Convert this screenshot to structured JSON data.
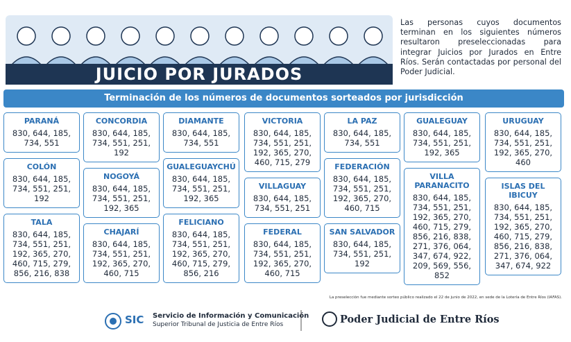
{
  "header": {
    "title": "JUICIO POR JURADOS",
    "intro": "Las personas cuyos documentos terminan en los siguientes números resultaron preseleccionadas para integrar Juicios por Jurados en Entre Ríos. Serán contactadas por personal del Poder Judicial."
  },
  "subtitle": "Terminación de los números de documentos sorteados por jurisdicción",
  "columns": [
    [
      {
        "name": "PARANÁ",
        "numbers": "830, 644, 185, 734, 551"
      },
      {
        "name": "COLÓN",
        "numbers": "830, 644, 185, 734, 551, 251, 192"
      },
      {
        "name": "TALA",
        "numbers": "830, 644, 185, 734, 551, 251, 192, 365, 270, 460, 715, 279, 856, 216, 838"
      }
    ],
    [
      {
        "name": "CONCORDIA",
        "numbers": "830, 644, 185, 734, 551, 251, 192"
      },
      {
        "name": "NOGOYÁ",
        "numbers": "830, 644, 185, 734, 551, 251, 192, 365"
      },
      {
        "name": "CHAJARÍ",
        "numbers": "830, 644, 185, 734, 551, 251, 192, 365, 270, 460, 715"
      }
    ],
    [
      {
        "name": "DIAMANTE",
        "numbers": "830, 644, 185, 734, 551"
      },
      {
        "name": "GUALEGUAYCHÚ",
        "numbers": "830, 644, 185, 734, 551, 251, 192, 365"
      },
      {
        "name": "FELICIANO",
        "numbers": "830, 644, 185, 734, 551, 251, 192, 365, 270, 460, 715, 279, 856, 216"
      }
    ],
    [
      {
        "name": "VICTORIA",
        "numbers": "830, 644, 185, 734, 551, 251, 192, 365, 270, 460, 715, 279"
      },
      {
        "name": "VILLAGUAY",
        "numbers": "830, 644, 185, 734, 551, 251"
      },
      {
        "name": "FEDERAL",
        "numbers": "830, 644, 185, 734, 551, 251, 192, 365, 270, 460, 715"
      }
    ],
    [
      {
        "name": "LA PAZ",
        "numbers": "830, 644, 185, 734, 551"
      },
      {
        "name": "FEDERACIÓN",
        "numbers": "830, 644, 185, 734, 551, 251, 192, 365, 270, 460, 715"
      },
      {
        "name": "SAN SALVADOR",
        "numbers": "830, 644, 185, 734, 551, 251, 192"
      }
    ],
    [
      {
        "name": "GUALEGUAY",
        "numbers": "830, 644, 185, 734, 551, 251, 192, 365"
      },
      {
        "name": "VILLA PARANACITO",
        "numbers": "830, 644, 185, 734, 551, 251, 192, 365, 270, 460, 715, 279, 856, 216, 838, 271, 376, 064, 347, 674, 922, 209, 569, 556, 852"
      }
    ],
    [
      {
        "name": "URUGUAY",
        "numbers": "830, 644, 185, 734, 551, 251, 192, 365, 270, 460"
      },
      {
        "name": "ISLAS DEL IBICUY",
        "numbers": "830, 644, 185, 734, 551, 251, 192, 365, 270, 460, 715, 279, 856, 216, 838, 271, 376, 064, 347, 674, 922"
      }
    ]
  ],
  "note": "La preselección fue mediante sorteo público realizado el 22 de junio de 2022, en sede de la Lotería de Entre Ríos (IAFAS).",
  "footer": {
    "sic": "SIC",
    "org": "Servicio de Información y Comunicación",
    "suborg": "Superior Tribunal de Justicia de Entre Ríos",
    "judiciary": "Poder Judicial de Entre Ríos"
  }
}
